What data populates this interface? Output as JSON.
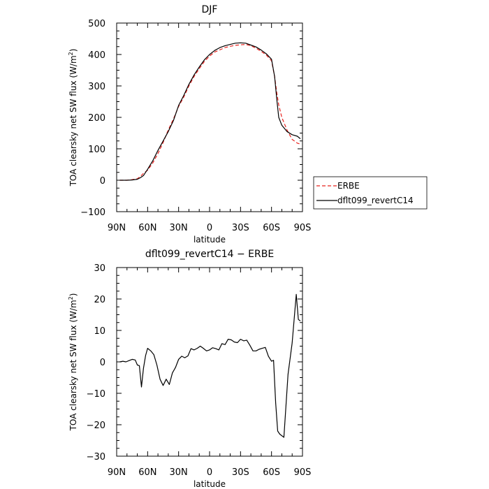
{
  "chart_data": [
    {
      "type": "line",
      "title": "DJF",
      "xlabel": "latitude",
      "ylabel": "TOA clearsky net SW flux (W/m²)",
      "xlim": [
        90,
        -90
      ],
      "ylim": [
        -100,
        500
      ],
      "x_ticks": [
        {
          "value": 90,
          "label": "90N"
        },
        {
          "value": 60,
          "label": "60N"
        },
        {
          "value": 30,
          "label": "30N"
        },
        {
          "value": 0,
          "label": "0"
        },
        {
          "value": -30,
          "label": "30S"
        },
        {
          "value": -60,
          "label": "60S"
        },
        {
          "value": -90,
          "label": "90S"
        }
      ],
      "y_ticks": [
        -100,
        0,
        100,
        200,
        300,
        400,
        500
      ],
      "grid": false,
      "legend": {
        "placement": "outside-right",
        "entries": [
          "ERBE",
          "dflt099_revertC14"
        ]
      },
      "series": [
        {
          "name": "ERBE",
          "color": "#e8231f",
          "dash": "dashed",
          "x": [
            87,
            80,
            75,
            70,
            67,
            64,
            60,
            55,
            50,
            45,
            40,
            35,
            30,
            25,
            20,
            15,
            10,
            5,
            0,
            -5,
            -10,
            -15,
            -20,
            -25,
            -30,
            -35,
            -40,
            -45,
            -50,
            -55,
            -60,
            -63,
            -65,
            -67,
            -70,
            -75,
            -80,
            -85,
            -88
          ],
          "y": [
            0,
            0,
            2,
            5,
            12,
            22,
            32,
            55,
            85,
            120,
            160,
            195,
            235,
            265,
            300,
            330,
            355,
            378,
            395,
            408,
            415,
            422,
            426,
            429,
            431,
            432,
            428,
            420,
            410,
            398,
            380,
            330,
            280,
            240,
            200,
            160,
            130,
            118,
            115
          ]
        },
        {
          "name": "dflt099_revertC14",
          "color": "#000000",
          "dash": "solid",
          "x": [
            87,
            80,
            75,
            70,
            67,
            64,
            60,
            55,
            50,
            45,
            40,
            35,
            30,
            25,
            20,
            15,
            10,
            5,
            0,
            -5,
            -10,
            -15,
            -20,
            -25,
            -30,
            -35,
            -40,
            -45,
            -50,
            -55,
            -60,
            -63,
            -65,
            -67,
            -70,
            -75,
            -80,
            -85,
            -88
          ],
          "y": [
            0,
            0,
            1,
            3,
            8,
            15,
            35,
            62,
            95,
            125,
            155,
            190,
            238,
            270,
            305,
            335,
            360,
            383,
            400,
            413,
            422,
            428,
            432,
            436,
            437,
            436,
            430,
            424,
            414,
            402,
            385,
            330,
            260,
            200,
            175,
            155,
            145,
            140,
            132
          ]
        }
      ]
    },
    {
      "type": "line",
      "title": "dflt099_revertC14 − ERBE",
      "xlabel": "latitude",
      "ylabel": "TOA clearsky net SW flux (W/m²)",
      "xlim": [
        90,
        -90
      ],
      "ylim": [
        -30,
        30
      ],
      "x_ticks": [
        {
          "value": 90,
          "label": "90N"
        },
        {
          "value": 60,
          "label": "60N"
        },
        {
          "value": 30,
          "label": "30N"
        },
        {
          "value": 0,
          "label": "0"
        },
        {
          "value": -30,
          "label": "30S"
        },
        {
          "value": -60,
          "label": "60S"
        },
        {
          "value": -90,
          "label": "90S"
        }
      ],
      "y_ticks": [
        -30,
        -20,
        -10,
        0,
        10,
        20,
        30
      ],
      "grid": false,
      "series": [
        {
          "color": "#000000",
          "dash": "solid",
          "x": [
            87,
            84,
            81,
            78,
            75,
            72,
            70,
            68,
            66,
            64,
            62,
            60,
            57,
            54,
            51,
            48,
            45,
            42,
            39,
            36,
            33,
            30,
            27,
            24,
            21,
            18,
            15,
            12,
            9,
            6,
            3,
            0,
            -3,
            -6,
            -9,
            -12,
            -15,
            -18,
            -21,
            -24,
            -27,
            -30,
            -33,
            -36,
            -39,
            -42,
            -45,
            -48,
            -51,
            -54,
            -57,
            -60,
            -62,
            -64,
            -66,
            -68,
            -72,
            -76,
            -80,
            -84,
            -86,
            -88
          ],
          "y": [
            0,
            0.2,
            0,
            0.4,
            0.8,
            0.6,
            -1,
            -1.2,
            -8,
            -2,
            2,
            4.3,
            3.5,
            2.3,
            -1,
            -5.5,
            -7.5,
            -5.5,
            -7.2,
            -3.5,
            -1.8,
            0.8,
            1.8,
            1.3,
            1.9,
            4.2,
            3.8,
            4.3,
            5,
            4.3,
            3.5,
            3.8,
            4.5,
            4.2,
            3.8,
            5.8,
            5.5,
            7.2,
            7,
            6.3,
            6.1,
            7.2,
            6.7,
            6.9,
            5.3,
            3.5,
            3.5,
            4,
            4.3,
            4.6,
            1.8,
            0.2,
            0.5,
            -13,
            -22,
            -23,
            -24,
            -4,
            6,
            21.5,
            13.5,
            13
          ]
        }
      ]
    }
  ]
}
